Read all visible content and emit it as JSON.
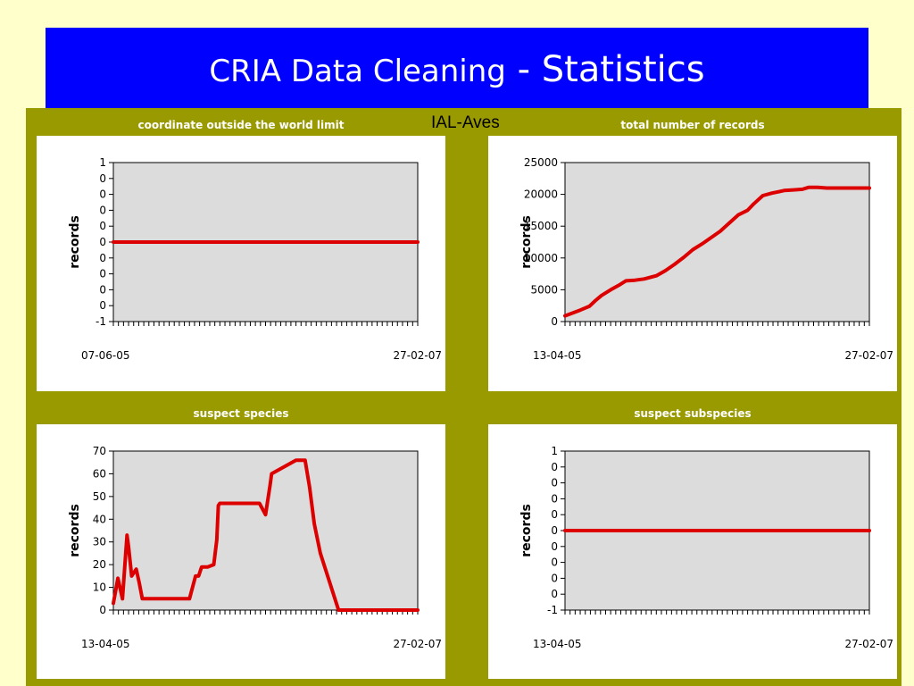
{
  "page": {
    "title_part1": "CRIA Data Cleaning",
    "title_part2": " - Statistics",
    "subtitle": "IAL-Aves",
    "colors": {
      "background": "#ffffcc",
      "banner": "#0000ff",
      "panel": "#999900",
      "plot_bg": "#dcdcdc",
      "series": "#dd0000"
    }
  },
  "chart_data": [
    {
      "type": "line",
      "title": "coordinate outside the world limit",
      "ylabel": "records",
      "ylim": [
        -1,
        1
      ],
      "yticks": [
        "1",
        "0",
        "0",
        "0",
        "0",
        "0",
        "0",
        "0",
        "0",
        "0",
        "-1"
      ],
      "x_start_label": "07-06-05",
      "x_end_label": "27-02-07",
      "series": [
        {
          "x": [
            0,
            1
          ],
          "values": [
            0,
            0
          ]
        }
      ]
    },
    {
      "type": "line",
      "title": "total number of records",
      "ylabel": "records",
      "ylim": [
        0,
        25000
      ],
      "yticks": [
        "25000",
        "20000",
        "15000",
        "10000",
        "5000",
        "0"
      ],
      "x_start_label": "13-04-05",
      "x_end_label": "27-02-07",
      "series": [
        {
          "x": [
            0,
            0.05,
            0.08,
            0.1,
            0.12,
            0.15,
            0.18,
            0.2,
            0.23,
            0.26,
            0.3,
            0.33,
            0.36,
            0.39,
            0.42,
            0.45,
            0.48,
            0.51,
            0.54,
            0.57,
            0.6,
            0.62,
            0.65,
            0.68,
            0.7,
            0.72,
            0.75,
            0.78,
            0.8,
            0.83,
            0.86,
            0.9,
            0.95,
            1
          ],
          "values": [
            900,
            1800,
            2400,
            3300,
            4100,
            5000,
            5800,
            6400,
            6500,
            6700,
            7200,
            8000,
            9000,
            10100,
            11300,
            12200,
            13200,
            14200,
            15500,
            16800,
            17500,
            18500,
            19800,
            20200,
            20400,
            20600,
            20700,
            20800,
            21100,
            21100,
            21000,
            21000,
            21000,
            21000
          ]
        }
      ]
    },
    {
      "type": "line",
      "title": "suspect species",
      "ylabel": "records",
      "ylim": [
        0,
        70
      ],
      "yticks": [
        "70",
        "60",
        "50",
        "40",
        "30",
        "20",
        "10",
        "0"
      ],
      "x_start_label": "13-04-05",
      "x_end_label": "27-02-07",
      "series": [
        {
          "x": [
            0,
            0.015,
            0.03,
            0.045,
            0.05,
            0.06,
            0.075,
            0.085,
            0.095,
            0.11,
            0.25,
            0.27,
            0.28,
            0.29,
            0.31,
            0.33,
            0.34,
            0.345,
            0.35,
            0.45,
            0.48,
            0.5,
            0.515,
            0.52,
            0.6,
            0.63,
            0.645,
            0.66,
            0.68,
            0.74,
            1
          ],
          "values": [
            3,
            14,
            5,
            33,
            28,
            15,
            18,
            12,
            5,
            5,
            5,
            15,
            15,
            19,
            19,
            20,
            31,
            46,
            47,
            47,
            47,
            42,
            55,
            60,
            66,
            66,
            54,
            38,
            25,
            0,
            0
          ]
        }
      ]
    },
    {
      "type": "line",
      "title": "suspect subspecies",
      "ylabel": "records",
      "ylim": [
        -1,
        1
      ],
      "yticks": [
        "1",
        "0",
        "0",
        "0",
        "0",
        "0",
        "0",
        "0",
        "0",
        "0",
        "-1"
      ],
      "x_start_label": "13-04-05",
      "x_end_label": "27-02-07",
      "series": [
        {
          "x": [
            0,
            1
          ],
          "values": [
            0,
            0
          ]
        }
      ]
    }
  ]
}
